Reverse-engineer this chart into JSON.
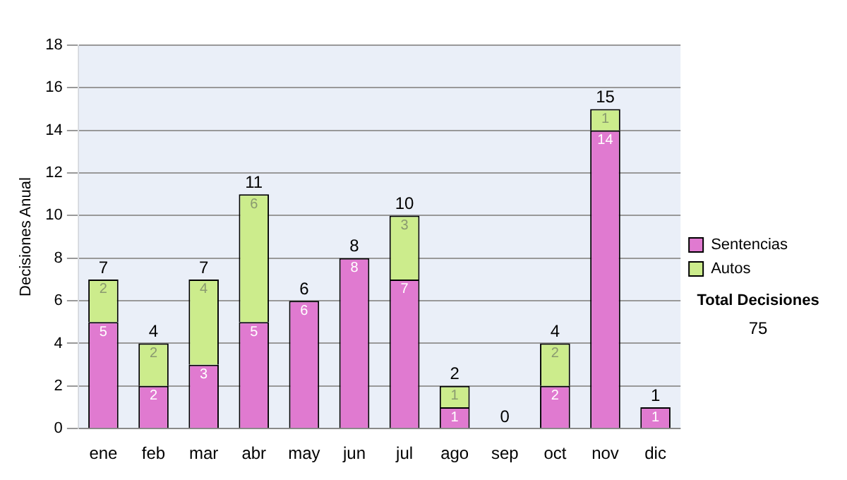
{
  "chart_data": {
    "type": "bar",
    "stacked": true,
    "ylabel": "Decisiones Anual",
    "categories": [
      "ene",
      "feb",
      "mar",
      "abr",
      "may",
      "jun",
      "jul",
      "ago",
      "sep",
      "oct",
      "nov",
      "dic"
    ],
    "series": [
      {
        "name": "Sentencias",
        "color": "#e07ad0",
        "values": [
          5,
          2,
          3,
          5,
          6,
          8,
          7,
          1,
          0,
          2,
          14,
          1
        ],
        "value_labels": [
          "5",
          "2",
          "3",
          "5",
          "6",
          "8",
          "7",
          "1",
          null,
          "2",
          "14",
          "1"
        ]
      },
      {
        "name": "Autos",
        "color": "#ccec8c",
        "values": [
          2,
          2,
          4,
          6,
          0,
          0,
          3,
          1,
          0,
          2,
          1,
          0
        ],
        "value_labels": [
          "2",
          "2",
          "4",
          "6",
          null,
          null,
          "3",
          "1",
          null,
          "2",
          "1",
          null
        ]
      }
    ],
    "totals": [
      "7",
      "4",
      "7",
      "11",
      "6",
      "8",
      "10",
      "2",
      "0",
      "4",
      "15",
      "1"
    ],
    "ylim": [
      0,
      18
    ],
    "yticks": [
      0,
      2,
      4,
      6,
      8,
      10,
      12,
      14,
      16,
      18
    ],
    "grid": "y",
    "legend": "right",
    "annotations": [
      "Total Decisiones",
      "75"
    ]
  }
}
